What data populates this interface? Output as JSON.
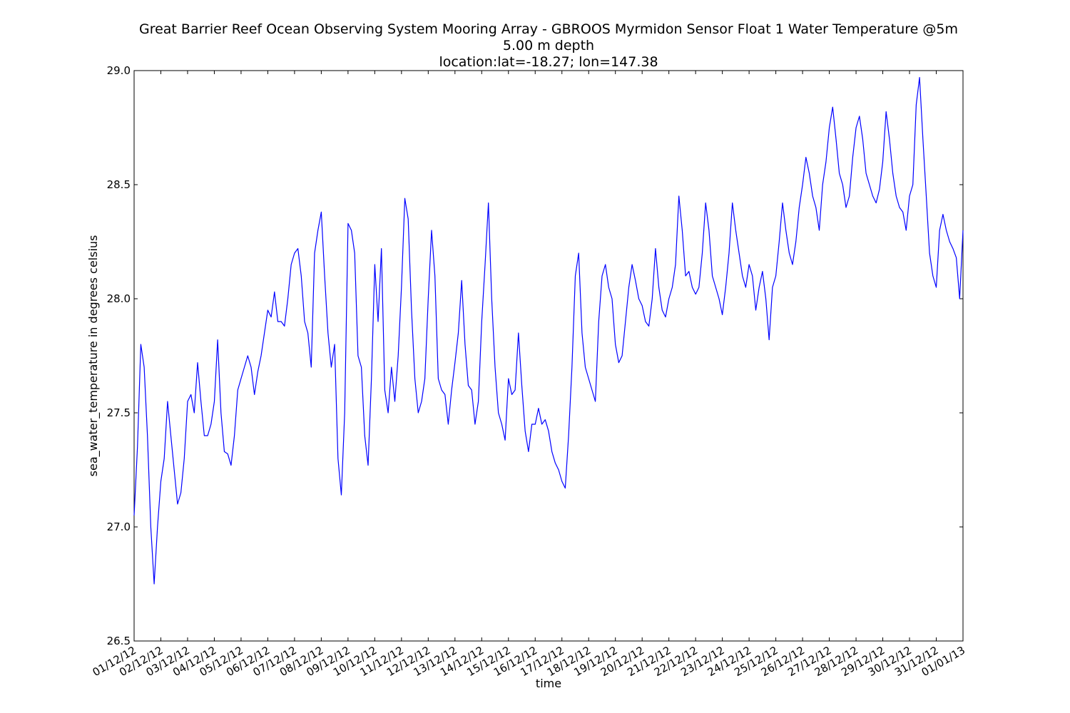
{
  "chart_data": {
    "type": "line",
    "title": [
      "Great Barrier Reef Ocean Observing System Mooring Array - GBROOS Myrmidon Sensor Float 1 Water Temperature @5m",
      "5.00 m depth",
      "location:lat=-18.27; lon=147.38"
    ],
    "xlabel": "time",
    "ylabel": "sea_water_temperature in degrees celsius",
    "xlim": [
      "2012-12-01",
      "2013-01-01"
    ],
    "ylim": [
      26.5,
      29.0
    ],
    "yticks": [
      "26.5",
      "27.0",
      "27.5",
      "28.0",
      "28.5",
      "29.0"
    ],
    "xticks": [
      "01/12/12",
      "02/12/12",
      "03/12/12",
      "04/12/12",
      "05/12/12",
      "06/12/12",
      "07/12/12",
      "08/12/12",
      "09/12/12",
      "10/12/12",
      "11/12/12",
      "12/12/12",
      "13/12/12",
      "14/12/12",
      "15/12/12",
      "16/12/12",
      "17/12/12",
      "18/12/12",
      "19/12/12",
      "20/12/12",
      "21/12/12",
      "22/12/12",
      "23/12/12",
      "24/12/12",
      "25/12/12",
      "26/12/12",
      "27/12/12",
      "28/12/12",
      "29/12/12",
      "30/12/12",
      "31/12/12",
      "01/01/13"
    ],
    "grid": false,
    "line_color": "#0000ff",
    "series": [
      {
        "x": [
          "2012-12-01 00:00",
          "2012-12-01 03:00",
          "2012-12-01 06:00",
          "2012-12-01 09:00",
          "2012-12-01 12:00",
          "2012-12-01 15:00",
          "2012-12-01 18:00",
          "2012-12-01 21:00",
          "2012-12-02 00:00",
          "2012-12-02 03:00",
          "2012-12-02 06:00",
          "2012-12-02 09:00",
          "2012-12-02 12:00",
          "2012-12-02 15:00",
          "2012-12-02 18:00",
          "2012-12-02 21:00",
          "2012-12-03 00:00",
          "2012-12-03 03:00",
          "2012-12-03 06:00",
          "2012-12-03 09:00",
          "2012-12-03 12:00",
          "2012-12-03 15:00",
          "2012-12-03 18:00",
          "2012-12-03 21:00",
          "2012-12-04 00:00",
          "2012-12-04 03:00",
          "2012-12-04 06:00",
          "2012-12-04 09:00",
          "2012-12-04 12:00",
          "2012-12-04 15:00",
          "2012-12-04 18:00",
          "2012-12-04 21:00",
          "2012-12-05 00:00",
          "2012-12-05 03:00",
          "2012-12-05 06:00",
          "2012-12-05 09:00",
          "2012-12-05 12:00",
          "2012-12-05 15:00",
          "2012-12-05 18:00",
          "2012-12-05 21:00",
          "2012-12-06 00:00",
          "2012-12-06 03:00",
          "2012-12-06 06:00",
          "2012-12-06 09:00",
          "2012-12-06 12:00",
          "2012-12-06 15:00",
          "2012-12-06 18:00",
          "2012-12-06 21:00",
          "2012-12-07 00:00",
          "2012-12-07 03:00",
          "2012-12-07 06:00",
          "2012-12-07 09:00",
          "2012-12-07 12:00",
          "2012-12-07 15:00",
          "2012-12-07 18:00",
          "2012-12-07 21:00",
          "2012-12-08 00:00",
          "2012-12-08 03:00",
          "2012-12-08 06:00",
          "2012-12-08 09:00",
          "2012-12-08 12:00",
          "2012-12-08 15:00",
          "2012-12-08 18:00",
          "2012-12-08 21:00",
          "2012-12-09 00:00",
          "2012-12-09 03:00",
          "2012-12-09 06:00",
          "2012-12-09 09:00",
          "2012-12-09 12:00",
          "2012-12-09 15:00",
          "2012-12-09 18:00",
          "2012-12-09 21:00",
          "2012-12-10 00:00",
          "2012-12-10 03:00",
          "2012-12-10 06:00",
          "2012-12-10 09:00",
          "2012-12-10 12:00",
          "2012-12-10 15:00",
          "2012-12-10 18:00",
          "2012-12-10 21:00",
          "2012-12-11 00:00",
          "2012-12-11 03:00",
          "2012-12-11 06:00",
          "2012-12-11 09:00",
          "2012-12-11 12:00",
          "2012-12-11 15:00",
          "2012-12-11 18:00",
          "2012-12-11 21:00",
          "2012-12-12 00:00",
          "2012-12-12 03:00",
          "2012-12-12 06:00",
          "2012-12-12 09:00",
          "2012-12-12 12:00",
          "2012-12-12 15:00",
          "2012-12-12 18:00",
          "2012-12-12 21:00",
          "2012-12-13 00:00",
          "2012-12-13 03:00",
          "2012-12-13 06:00",
          "2012-12-13 09:00",
          "2012-12-13 12:00",
          "2012-12-13 15:00",
          "2012-12-13 18:00",
          "2012-12-13 21:00",
          "2012-12-14 00:00",
          "2012-12-14 03:00",
          "2012-12-14 06:00",
          "2012-12-14 09:00",
          "2012-12-14 12:00",
          "2012-12-14 15:00",
          "2012-12-14 18:00",
          "2012-12-14 21:00",
          "2012-12-15 00:00",
          "2012-12-15 03:00",
          "2012-12-15 06:00",
          "2012-12-15 09:00",
          "2012-12-15 12:00",
          "2012-12-15 15:00",
          "2012-12-15 18:00",
          "2012-12-15 21:00",
          "2012-12-16 00:00",
          "2012-12-16 03:00",
          "2012-12-16 06:00",
          "2012-12-16 09:00",
          "2012-12-16 12:00",
          "2012-12-16 15:00",
          "2012-12-16 18:00",
          "2012-12-16 21:00",
          "2012-12-17 00:00",
          "2012-12-17 03:00",
          "2012-12-17 06:00",
          "2012-12-17 09:00",
          "2012-12-17 12:00",
          "2012-12-17 15:00",
          "2012-12-17 18:00",
          "2012-12-17 21:00",
          "2012-12-18 00:00",
          "2012-12-18 03:00",
          "2012-12-18 06:00",
          "2012-12-18 09:00",
          "2012-12-18 12:00",
          "2012-12-18 15:00",
          "2012-12-18 18:00",
          "2012-12-18 21:00",
          "2012-12-19 00:00",
          "2012-12-19 03:00",
          "2012-12-19 06:00",
          "2012-12-19 09:00",
          "2012-12-19 12:00",
          "2012-12-19 15:00",
          "2012-12-19 18:00",
          "2012-12-19 21:00",
          "2012-12-20 00:00",
          "2012-12-20 03:00",
          "2012-12-20 06:00",
          "2012-12-20 09:00",
          "2012-12-20 12:00",
          "2012-12-20 15:00",
          "2012-12-20 18:00",
          "2012-12-20 21:00",
          "2012-12-21 00:00",
          "2012-12-21 03:00",
          "2012-12-21 06:00",
          "2012-12-21 09:00",
          "2012-12-21 12:00",
          "2012-12-21 15:00",
          "2012-12-21 18:00",
          "2012-12-21 21:00",
          "2012-12-22 00:00",
          "2012-12-22 03:00",
          "2012-12-22 06:00",
          "2012-12-22 09:00",
          "2012-12-22 12:00",
          "2012-12-22 15:00",
          "2012-12-22 18:00",
          "2012-12-22 21:00",
          "2012-12-23 00:00",
          "2012-12-23 03:00",
          "2012-12-23 06:00",
          "2012-12-23 09:00",
          "2012-12-23 12:00",
          "2012-12-23 15:00",
          "2012-12-23 18:00",
          "2012-12-23 21:00",
          "2012-12-24 00:00",
          "2012-12-24 03:00",
          "2012-12-24 06:00",
          "2012-12-24 09:00",
          "2012-12-24 12:00",
          "2012-12-24 15:00",
          "2012-12-24 18:00",
          "2012-12-24 21:00",
          "2012-12-25 00:00",
          "2012-12-25 03:00",
          "2012-12-25 06:00",
          "2012-12-25 09:00",
          "2012-12-25 12:00",
          "2012-12-25 15:00",
          "2012-12-25 18:00",
          "2012-12-25 21:00",
          "2012-12-26 00:00",
          "2012-12-26 03:00",
          "2012-12-26 06:00",
          "2012-12-26 09:00",
          "2012-12-26 12:00",
          "2012-12-26 15:00",
          "2012-12-26 18:00",
          "2012-12-26 21:00",
          "2012-12-27 00:00",
          "2012-12-27 03:00",
          "2012-12-27 06:00",
          "2012-12-27 09:00",
          "2012-12-27 12:00",
          "2012-12-27 15:00",
          "2012-12-27 18:00",
          "2012-12-27 21:00",
          "2012-12-28 00:00",
          "2012-12-28 03:00",
          "2012-12-28 06:00",
          "2012-12-28 09:00",
          "2012-12-28 12:00",
          "2012-12-28 15:00",
          "2012-12-28 18:00",
          "2012-12-28 21:00",
          "2012-12-29 00:00",
          "2012-12-29 03:00",
          "2012-12-29 06:00",
          "2012-12-29 09:00",
          "2012-12-29 12:00",
          "2012-12-29 15:00",
          "2012-12-29 18:00",
          "2012-12-29 21:00",
          "2012-12-30 00:00",
          "2012-12-30 03:00",
          "2012-12-30 06:00",
          "2012-12-30 09:00",
          "2012-12-30 12:00",
          "2012-12-30 15:00",
          "2012-12-30 18:00",
          "2012-12-30 21:00",
          "2012-12-31 00:00",
          "2012-12-31 03:00",
          "2012-12-31 06:00",
          "2012-12-31 09:00",
          "2012-12-31 12:00",
          "2012-12-31 15:00",
          "2012-12-31 18:00",
          "2012-12-31 21:00",
          "2013-01-01 00:00"
        ],
        "values": [
          27.05,
          27.35,
          27.8,
          27.7,
          27.4,
          27.0,
          26.75,
          27.0,
          27.2,
          27.3,
          27.55,
          27.4,
          27.25,
          27.1,
          27.15,
          27.3,
          27.55,
          27.58,
          27.5,
          27.72,
          27.55,
          27.4,
          27.4,
          27.45,
          27.55,
          27.82,
          27.5,
          27.33,
          27.32,
          27.27,
          27.4,
          27.6,
          27.65,
          27.7,
          27.75,
          27.7,
          27.58,
          27.68,
          27.75,
          27.85,
          27.95,
          27.92,
          28.03,
          27.9,
          27.9,
          27.88,
          28.0,
          28.15,
          28.2,
          28.22,
          28.1,
          27.9,
          27.85,
          27.7,
          28.2,
          28.3,
          28.38,
          28.1,
          27.85,
          27.7,
          27.8,
          27.3,
          27.14,
          27.5,
          28.33,
          28.3,
          28.2,
          27.75,
          27.7,
          27.4,
          27.27,
          27.65,
          28.15,
          27.9,
          28.22,
          27.6,
          27.5,
          27.7,
          27.55,
          27.75,
          28.05,
          28.44,
          28.35,
          27.95,
          27.65,
          27.5,
          27.55,
          27.65,
          28.0,
          28.3,
          28.1,
          27.65,
          27.6,
          27.58,
          27.45,
          27.6,
          27.72,
          27.85,
          28.08,
          27.8,
          27.62,
          27.6,
          27.45,
          27.55,
          27.9,
          28.15,
          28.42,
          28.0,
          27.7,
          27.5,
          27.45,
          27.38,
          27.65,
          27.58,
          27.6,
          27.85,
          27.62,
          27.42,
          27.33,
          27.45,
          27.45,
          27.52,
          27.45,
          27.47,
          27.42,
          27.33,
          27.28,
          27.25,
          27.2,
          27.17,
          27.4,
          27.7,
          28.1,
          28.2,
          27.85,
          27.7,
          27.65,
          27.6,
          27.55,
          27.9,
          28.1,
          28.15,
          28.05,
          28.0,
          27.8,
          27.72,
          27.75,
          27.9,
          28.05,
          28.15,
          28.08,
          28.0,
          27.97,
          27.9,
          27.88,
          28.0,
          28.22,
          28.05,
          27.95,
          27.92,
          28.0,
          28.05,
          28.15,
          28.45,
          28.3,
          28.1,
          28.12,
          28.05,
          28.02,
          28.05,
          28.2,
          28.42,
          28.3,
          28.1,
          28.05,
          28.0,
          27.93,
          28.05,
          28.2,
          28.42,
          28.3,
          28.2,
          28.1,
          28.05,
          28.15,
          28.1,
          27.95,
          28.05,
          28.12,
          28.0,
          27.82,
          28.05,
          28.1,
          28.25,
          28.42,
          28.3,
          28.2,
          28.15,
          28.25,
          28.4,
          28.5,
          28.62,
          28.55,
          28.45,
          28.4,
          28.3,
          28.5,
          28.6,
          28.75,
          28.84,
          28.7,
          28.55,
          28.5,
          28.4,
          28.45,
          28.62,
          28.75,
          28.8,
          28.7,
          28.55,
          28.5,
          28.45,
          28.42,
          28.48,
          28.6,
          28.82,
          28.7,
          28.55,
          28.45,
          28.4,
          28.38,
          28.3,
          28.45,
          28.5,
          28.85,
          28.97,
          28.7,
          28.45,
          28.2,
          28.1,
          28.05,
          28.3,
          28.37,
          28.3,
          28.25,
          28.22,
          28.18,
          28.0,
          28.3
        ]
      }
    ]
  }
}
